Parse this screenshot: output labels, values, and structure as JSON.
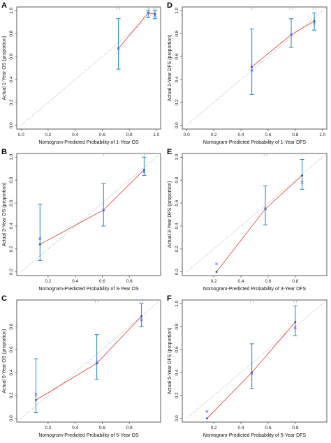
{
  "colors": {
    "ideal_line": "#b8b8b8",
    "fit_line": "#d9534f",
    "error_bar": "#2a8fd0",
    "observed_point": "#1f4fa0",
    "predicted_marker": "#6b6bff",
    "axis": "#333333"
  },
  "chart_data": [
    {
      "type": "scatter",
      "panel": "A",
      "xlabel": "Nomogram-Predicted Probability of 1-Year OS",
      "ylabel": "Actual 1-Year OS (proportion)",
      "xlim": [
        0,
        1
      ],
      "ylim": [
        0,
        1
      ],
      "xticks": [
        "0.0",
        "0.2",
        "0.4",
        "0.6",
        "0.8",
        "1.0"
      ],
      "yticks": [
        "0.0",
        "0.2",
        "0.4",
        "0.6",
        "0.8",
        "1.0"
      ],
      "ideal_line": true,
      "points": [
        {
          "x": 0.72,
          "y": 0.67,
          "lo": 0.49,
          "hi": 0.93,
          "pred": 0.67
        },
        {
          "x": 0.94,
          "y": 0.98,
          "lo": 0.94,
          "hi": 1.0,
          "pred": 0.98
        },
        {
          "x": 0.99,
          "y": 0.97,
          "lo": 0.93,
          "hi": 1.0,
          "pred": 0.96
        }
      ],
      "rug": [
        0.71,
        0.73,
        0.94,
        0.95,
        0.98,
        0.99,
        1.0
      ]
    },
    {
      "type": "scatter",
      "panel": "B",
      "xlabel": "Nomogram-Predicted Probability of 3-Year OS",
      "ylabel": "Actual 3-Year OS (proportion)",
      "xlim": [
        0,
        1
      ],
      "ylim": [
        0,
        1
      ],
      "xticks": [
        "0.2",
        "0.4",
        "0.6",
        "0.8"
      ],
      "yticks": [
        "0.0",
        "0.2",
        "0.4",
        "0.6",
        "0.8",
        "1.0"
      ],
      "ideal_line": true,
      "points": [
        {
          "x": 0.14,
          "y": 0.24,
          "lo": 0.1,
          "hi": 0.59,
          "pred": 0.29
        },
        {
          "x": 0.61,
          "y": 0.54,
          "lo": 0.4,
          "hi": 0.77,
          "pred": 0.54
        },
        {
          "x": 0.91,
          "y": 0.89,
          "lo": 0.84,
          "hi": 1.0,
          "pred": 0.87
        }
      ],
      "rug": [
        0.61,
        0.91
      ]
    },
    {
      "type": "scatter",
      "panel": "C",
      "xlabel": "Nomogram-Predicted Probability of 5-Year OS",
      "ylabel": "Actual 5-Year OS (proportion)",
      "xlim": [
        0,
        1
      ],
      "ylim": [
        0,
        1
      ],
      "xticks": [
        "0.2",
        "0.4",
        "0.6",
        "0.8"
      ],
      "yticks": [
        "0.0",
        "0.2",
        "0.4",
        "0.6",
        "0.8"
      ],
      "ideal_line": true,
      "points": [
        {
          "x": 0.11,
          "y": 0.16,
          "lo": 0.05,
          "hi": 0.52,
          "pred": 0.21
        },
        {
          "x": 0.56,
          "y": 0.48,
          "lo": 0.34,
          "hi": 0.73,
          "pred": 0.49
        },
        {
          "x": 0.89,
          "y": 0.89,
          "lo": 0.8,
          "hi": 1.0,
          "pred": 0.86
        }
      ],
      "rug": [
        0.55,
        0.57,
        0.88,
        0.9
      ]
    },
    {
      "type": "scatter",
      "panel": "D",
      "xlabel": "Nomogram-Predicted Probability of 1-Year DFS",
      "ylabel": "Actual 1-Year DFS (proportion)",
      "xlim": [
        0,
        1
      ],
      "ylim": [
        0,
        1
      ],
      "xticks": [
        "0.0",
        "0.2",
        "0.4",
        "0.6",
        "0.8",
        "1.0"
      ],
      "yticks": [
        "0.0",
        "0.2",
        "0.4",
        "0.6",
        "0.8",
        "1.0"
      ],
      "ideal_line": true,
      "points": [
        {
          "x": 0.48,
          "y": 0.51,
          "lo": 0.27,
          "hi": 0.84,
          "pred": 0.48
        },
        {
          "x": 0.77,
          "y": 0.79,
          "lo": 0.68,
          "hi": 0.93,
          "pred": 0.79
        },
        {
          "x": 0.94,
          "y": 0.91,
          "lo": 0.83,
          "hi": 0.98,
          "pred": 0.89
        }
      ],
      "rug": [
        0.48,
        0.76,
        0.78,
        0.93,
        0.95
      ]
    },
    {
      "type": "scatter",
      "panel": "E",
      "xlabel": "Nomogram-Predicted Probability of 3-Year DFS",
      "ylabel": "Actual 3-Year DFS (proportion)",
      "xlim": [
        0,
        1
      ],
      "ylim": [
        0,
        1
      ],
      "xticks": [
        "0.2",
        "0.4",
        "0.6",
        "0.8"
      ],
      "yticks": [
        "0.0",
        "0.2",
        "0.4",
        "0.6",
        "0.8",
        "1.0"
      ],
      "ideal_line": true,
      "points": [
        {
          "x": 0.22,
          "y": 0.0,
          "lo": 0.0,
          "hi": 0.0,
          "pred": 0.07
        },
        {
          "x": 0.58,
          "y": 0.55,
          "lo": 0.41,
          "hi": 0.75,
          "pred": 0.55
        },
        {
          "x": 0.85,
          "y": 0.84,
          "lo": 0.72,
          "hi": 0.98,
          "pred": 0.78
        }
      ],
      "rug": [
        0.57,
        0.59,
        0.85
      ]
    },
    {
      "type": "scatter",
      "panel": "F",
      "xlabel": "Nomogram-Predicted Probability of 5-Year DFS",
      "ylabel": "Actual 5-Year DFS (proportion)",
      "xlim": [
        0,
        1
      ],
      "ylim": [
        0,
        1
      ],
      "xticks": [
        "0.2",
        "0.4",
        "0.6",
        "0.8"
      ],
      "yticks": [
        "0.0",
        "0.2",
        "0.4",
        "0.6",
        "0.8",
        "1.0"
      ],
      "ideal_line": true,
      "points": [
        {
          "x": 0.15,
          "y": 0.0,
          "lo": 0.0,
          "hi": 0.0,
          "pred": 0.06
        },
        {
          "x": 0.48,
          "y": 0.4,
          "lo": 0.26,
          "hi": 0.65,
          "pred": 0.39
        },
        {
          "x": 0.8,
          "y": 0.84,
          "lo": 0.72,
          "hi": 0.98,
          "pred": 0.79
        }
      ],
      "rug": [
        0.47,
        0.49,
        0.79,
        0.81
      ]
    }
  ]
}
